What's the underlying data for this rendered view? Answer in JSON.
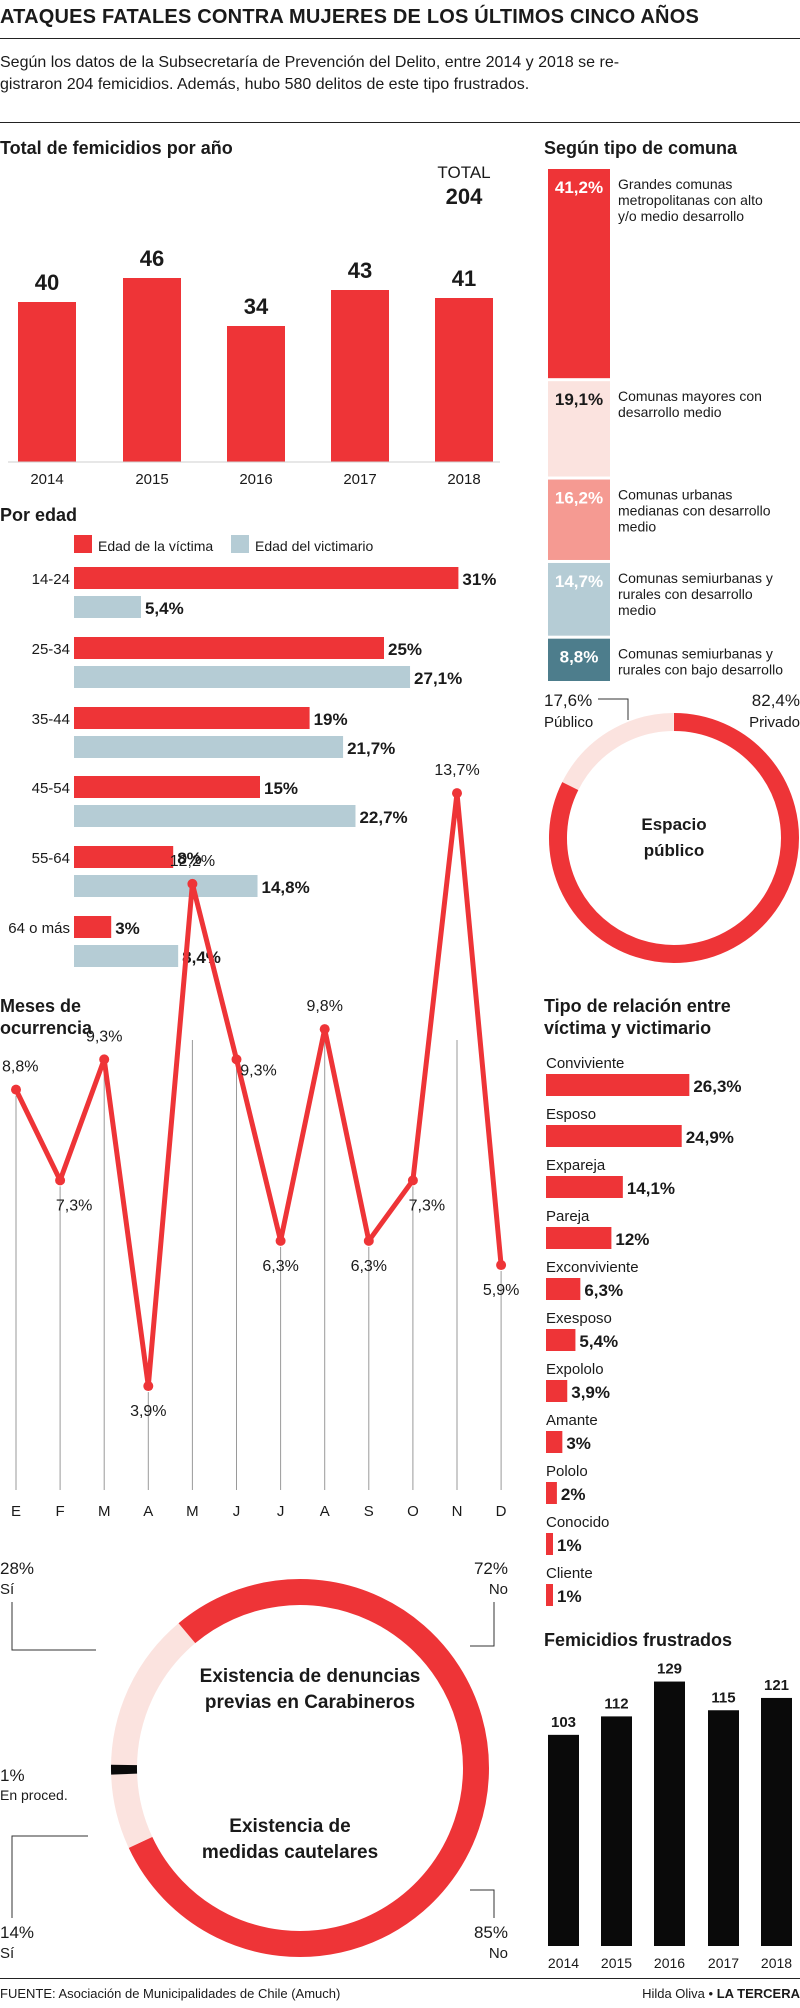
{
  "header": {
    "title": "ATAQUES FATALES CONTRA MUJERES DE LOS ÚLTIMOS CINCO AÑOS",
    "intro_line1": "Según los datos de la Subsecretaría de Prevención del Delito, entre 2014 y 2018 se re-",
    "intro_line2": "gistraron 204 femicidios. Además, hubo 580 delitos de este tipo frustrados."
  },
  "colors": {
    "red": "#ee3437",
    "blue": "#b5ccd5",
    "black": "#0a0a0a",
    "pale": "#fbe3df",
    "grid": "#9a9a9a"
  },
  "chart_data": [
    {
      "type": "bar",
      "title": "Total de femicidios por año",
      "categories": [
        "2014",
        "2015",
        "2016",
        "2017",
        "2018"
      ],
      "values": [
        40,
        46,
        34,
        43,
        41
      ],
      "total_label": "TOTAL",
      "total_value": "204"
    },
    {
      "type": "bar",
      "title": "Por edad",
      "orientation": "horizontal",
      "categories": [
        "14-24",
        "25-34",
        "35-44",
        "45-54",
        "55-64",
        "64 o más"
      ],
      "series": [
        {
          "name": "Edad de la víctima",
          "values": [
            31,
            25,
            19,
            15,
            8,
            3
          ],
          "labels": [
            "31%",
            "25%",
            "19%",
            "15%",
            "8%",
            "3%"
          ]
        },
        {
          "name": "Edad del victimario",
          "values": [
            5.4,
            27.1,
            21.7,
            22.7,
            14.8,
            8.4
          ],
          "labels": [
            "5,4%",
            "27,1%",
            "21,7%",
            "22,7%",
            "14,8%",
            "8,4%"
          ]
        }
      ]
    },
    {
      "type": "bar",
      "title": "Según tipo de comuna",
      "orientation": "stacked-vertical",
      "values": [
        41.2,
        19.1,
        16.2,
        14.7,
        8.8
      ],
      "labels": [
        "41,2%",
        "19,1%",
        "16,2%",
        "14,7%",
        "8,8%"
      ],
      "categories": [
        "Grandes comunas metropolitanas con alto y/o medio desarrollo",
        "Comunas mayores con desarrollo medio",
        "Comunas urbanas medianas con desarrollo medio",
        "Comunas semiurbanas y rurales con desarrollo medio",
        "Comunas semiurbanas y rurales con bajo desarrollo"
      ],
      "desc_lines": [
        [
          "Grandes comunas",
          "metropolitanas con alto",
          "y/o medio desarrollo"
        ],
        [
          "Comunas mayores con",
          "desarrollo medio"
        ],
        [
          "Comunas urbanas",
          "medianas con desarrollo",
          "medio"
        ],
        [
          "Comunas semiurbanas y",
          "rurales con desarrollo",
          "medio"
        ],
        [
          "Comunas semiurbanas y",
          "rurales con bajo desarrollo"
        ]
      ],
      "colors": [
        "#ee3437",
        "#fbe3df",
        "#f59a92",
        "#b5ccd5",
        "#4d7d8c"
      ]
    },
    {
      "type": "pie",
      "title": "Espacio público",
      "title_lines": [
        "Espacio",
        "público"
      ],
      "categories": [
        "Público",
        "Privado"
      ],
      "values": [
        17.6,
        82.4
      ],
      "labels": [
        "17,6%",
        "82,4%"
      ]
    },
    {
      "type": "line",
      "title": "Meses de ocurrencia",
      "title_lines": [
        "Meses de",
        "ocurrencia"
      ],
      "categories": [
        "E",
        "F",
        "M",
        "A",
        "M",
        "J",
        "J",
        "A",
        "S",
        "O",
        "N",
        "D"
      ],
      "values": [
        8.8,
        7.3,
        9.3,
        3.9,
        12.2,
        9.3,
        6.3,
        9.8,
        6.3,
        7.3,
        13.7,
        5.9
      ],
      "labels": [
        "8,8%",
        "7,3%",
        "9,3%",
        "3,9%",
        "12,2%",
        "9,3%",
        "6,3%",
        "9,8%",
        "6,3%",
        "7,3%",
        "13,7%",
        "5,9%"
      ]
    },
    {
      "type": "bar",
      "title": "Tipo de relación entre víctima y victimario",
      "title_lines": [
        "Tipo de relación entre",
        "víctima y victimario"
      ],
      "orientation": "horizontal",
      "categories": [
        "Conviviente",
        "Esposo",
        "Expareja",
        "Pareja",
        "Exconviviente",
        "Exesposo",
        "Expololo",
        "Amante",
        "Pololo",
        "Conocido",
        "Cliente"
      ],
      "values": [
        26.3,
        24.9,
        14.1,
        12,
        6.3,
        5.4,
        3.9,
        3,
        2,
        1,
        1
      ],
      "labels": [
        "26,3%",
        "24,9%",
        "14,1%",
        "12%",
        "6,3%",
        "5,4%",
        "3,9%",
        "3%",
        "2%",
        "1%",
        "1%"
      ]
    },
    {
      "type": "pie",
      "title": "Existencia de denuncias previas en Carabineros",
      "title_lines": [
        "Existencia de denuncias",
        "previas en Carabineros"
      ],
      "categories": [
        "Sí",
        "No"
      ],
      "values": [
        28,
        72
      ],
      "labels": [
        "28%",
        "72%"
      ]
    },
    {
      "type": "pie",
      "title": "Existencia de medidas cautelares",
      "title_lines": [
        "Existencia de",
        "medidas cautelares"
      ],
      "categories": [
        "En proced.",
        "Sí",
        "No"
      ],
      "values": [
        1,
        14,
        85
      ],
      "labels": [
        "1%",
        "14%",
        "85%"
      ]
    },
    {
      "type": "bar",
      "title": "Femicidios frustrados",
      "categories": [
        "2014",
        "2015",
        "2016",
        "2017",
        "2018"
      ],
      "values": [
        103,
        112,
        129,
        115,
        121
      ]
    }
  ],
  "footer": {
    "source": "FUENTE: Asociación de Municipalidades de Chile (Amuch)",
    "author": "Hilda Oliva • ",
    "brand": "LA TERCERA"
  }
}
